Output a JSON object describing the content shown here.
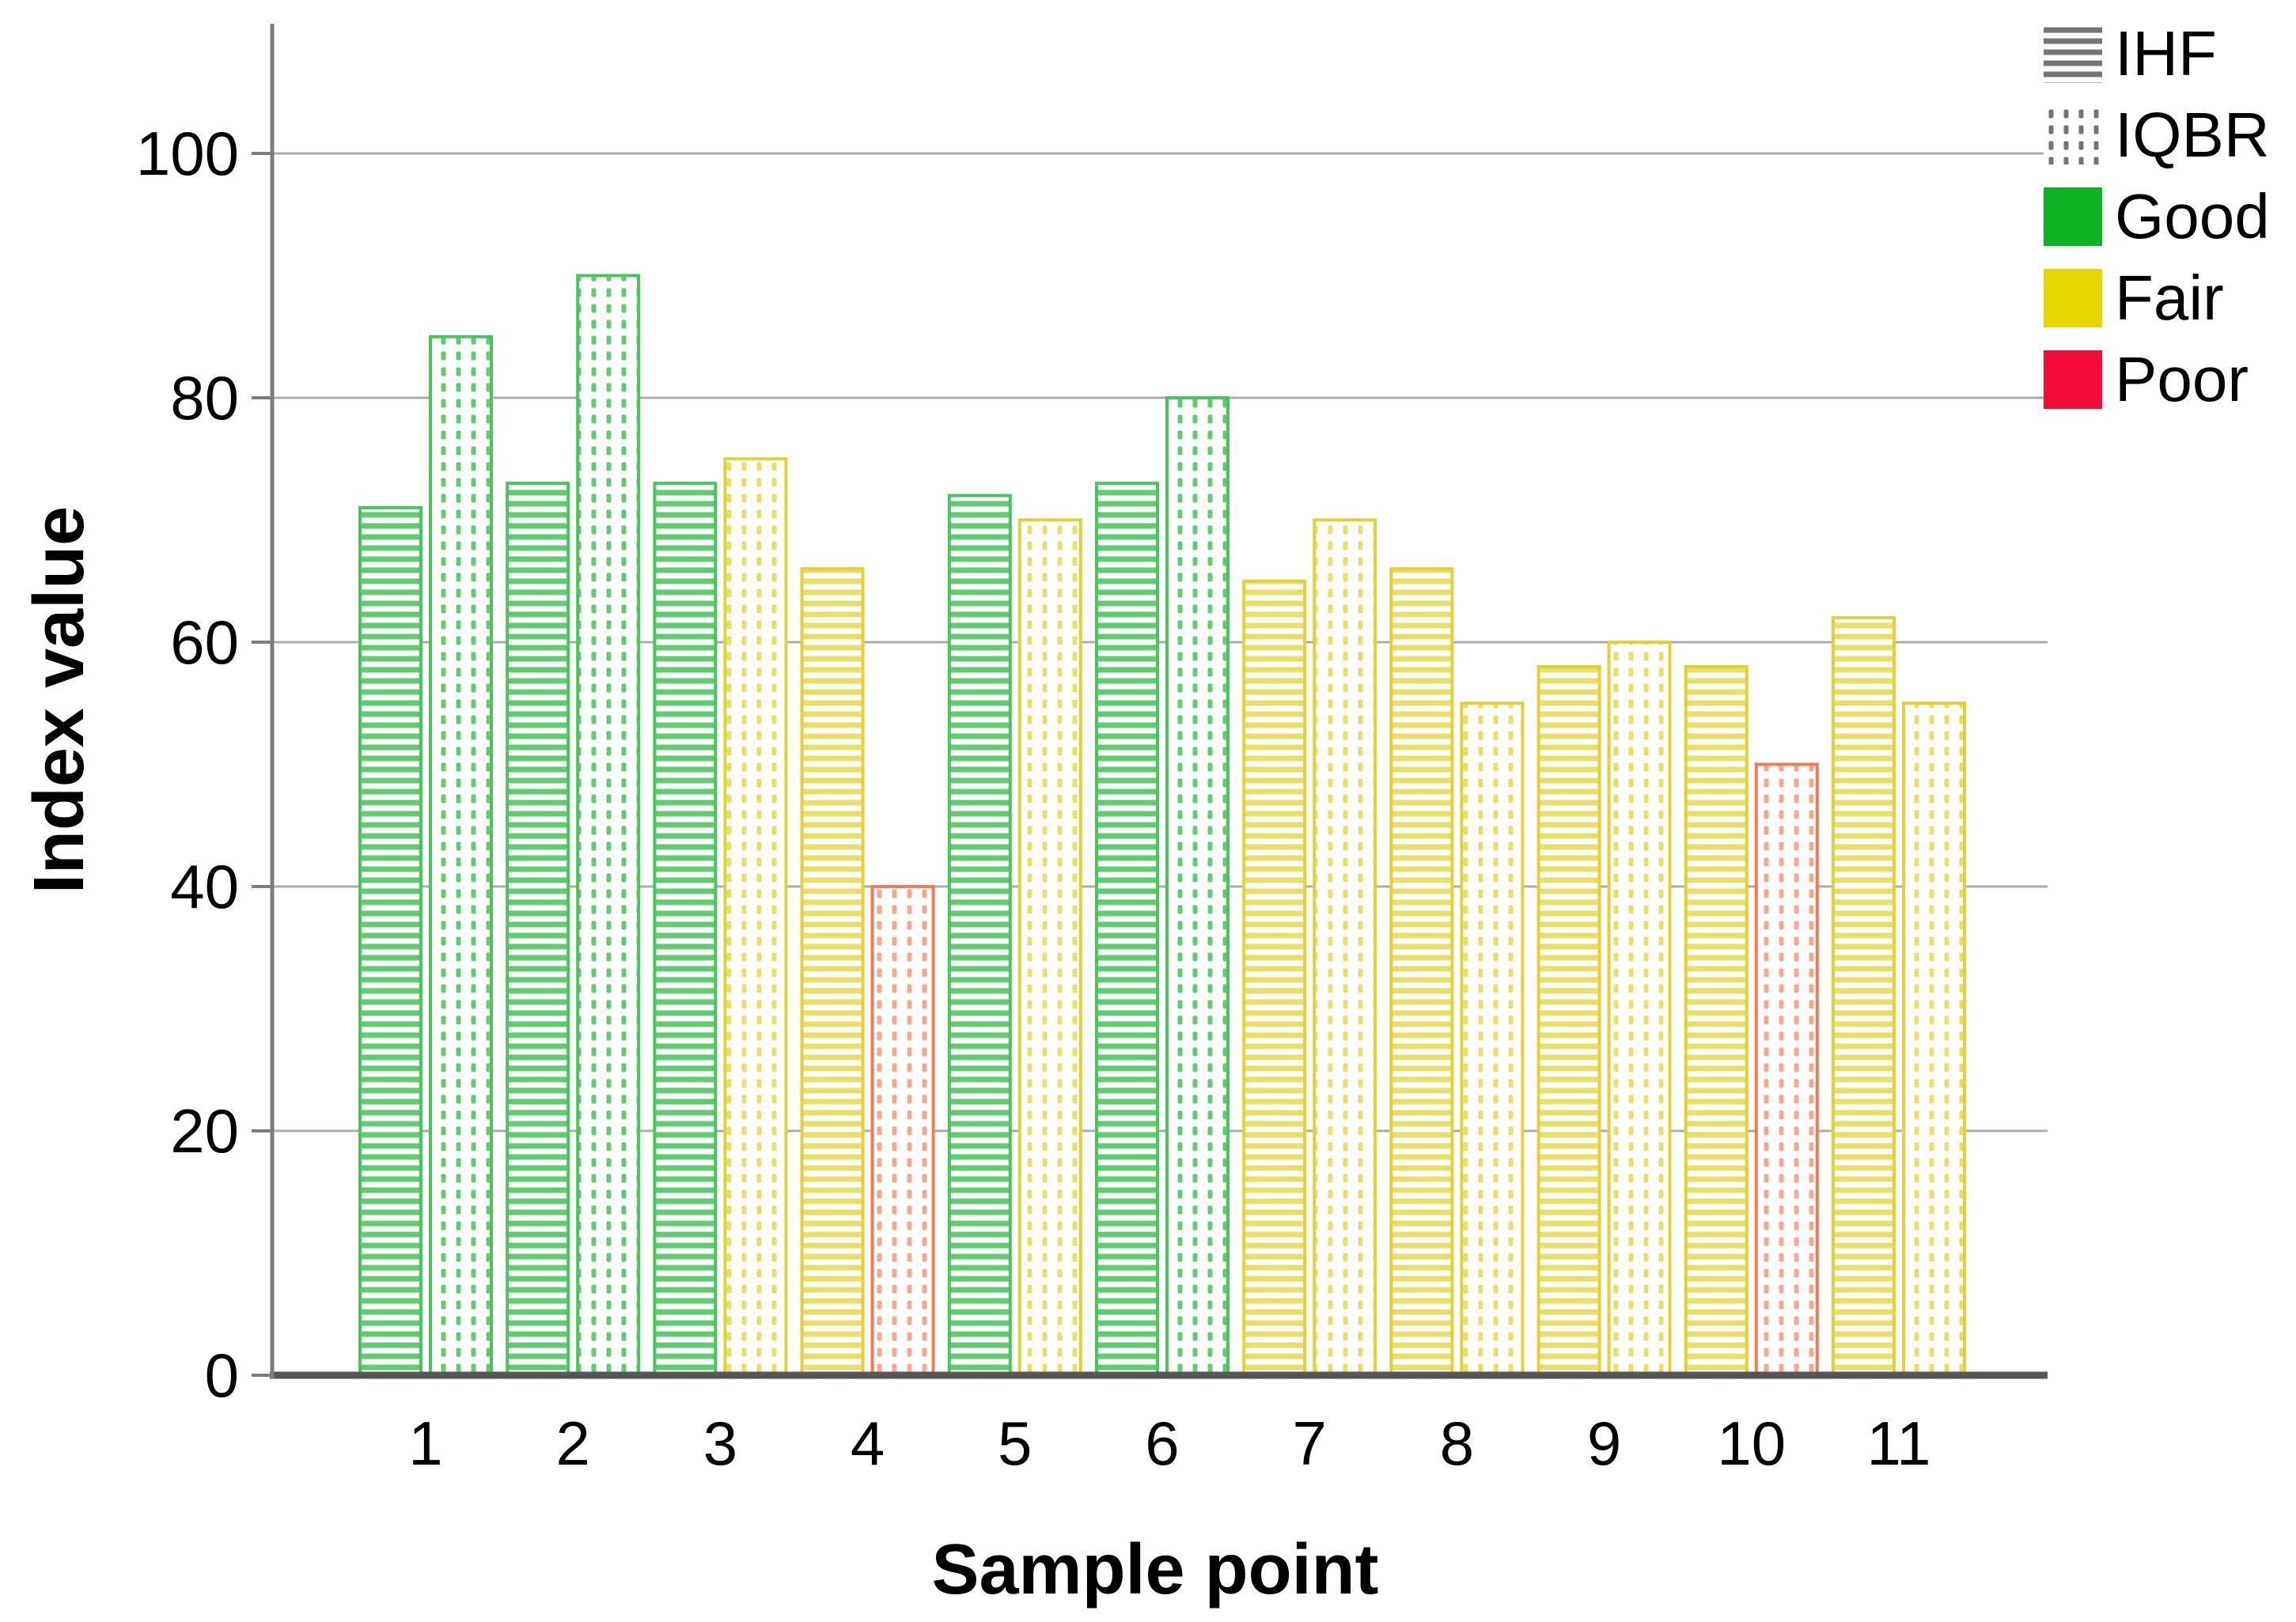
{
  "chart_data": {
    "type": "bar",
    "title": "",
    "xlabel": "Sample point",
    "ylabel": "Index value",
    "categories": [
      "1",
      "2",
      "3",
      "4",
      "5",
      "6",
      "7",
      "8",
      "9",
      "10",
      "11"
    ],
    "series": [
      {
        "name": "IHF",
        "pattern": "horizontal-stripes",
        "values": [
          71,
          73,
          73,
          66,
          72,
          73,
          65,
          66,
          58,
          58,
          62
        ],
        "classes": [
          "Good",
          "Good",
          "Good",
          "Fair",
          "Good",
          "Good",
          "Fair",
          "Fair",
          "Fair",
          "Fair",
          "Fair"
        ]
      },
      {
        "name": "IQBR",
        "pattern": "dotted-columns",
        "values": [
          85,
          90,
          75,
          40,
          70,
          80,
          70,
          55,
          60,
          50,
          55
        ],
        "classes": [
          "Good",
          "Good",
          "Fair",
          "Poor",
          "Fair",
          "Good",
          "Fair",
          "Fair",
          "Fair",
          "Poor",
          "Fair"
        ]
      }
    ],
    "ylim": [
      0,
      110
    ],
    "yticks": [
      0,
      20,
      40,
      60,
      80,
      100
    ],
    "grid": true,
    "legend_position": "top-right",
    "legend": [
      {
        "label": "IHF",
        "swatch": "pattern-horizontal-stripes"
      },
      {
        "label": "IQBR",
        "swatch": "pattern-dotted-columns"
      },
      {
        "label": "Good",
        "swatch": "solid",
        "color": "#0cb423"
      },
      {
        "label": "Fair",
        "swatch": "solid",
        "color": "#e6d600"
      },
      {
        "label": "Poor",
        "swatch": "solid",
        "color": "#f50a3c"
      }
    ],
    "class_colors": {
      "Good": {
        "stroke": "#4ac45c",
        "fill": "#60cc70"
      },
      "Fair": {
        "stroke": "#e2d134",
        "fill": "#eadf66"
      },
      "Poor": {
        "stroke": "#f37a52",
        "fill": "#f8a78e"
      }
    },
    "style_colors": {
      "gridline": "#acacac",
      "baseline": "#565656",
      "axis": "#7d7d7d",
      "legend_pattern_gray": "#757575",
      "text": "#000000"
    }
  }
}
